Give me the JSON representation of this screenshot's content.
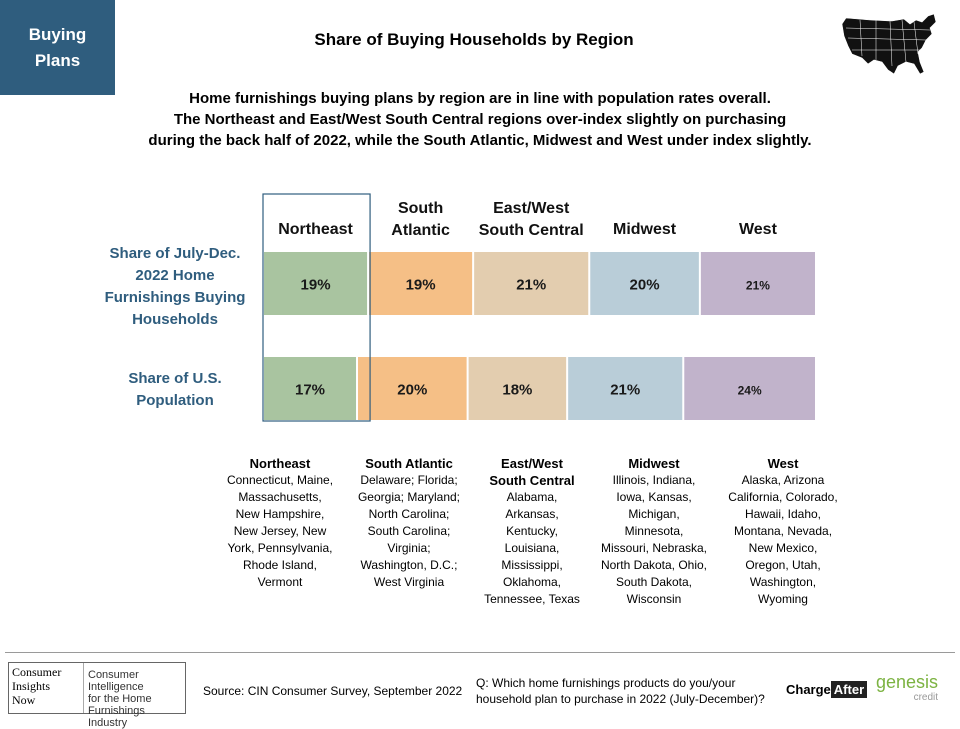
{
  "badge": {
    "line1": "Buying",
    "line2": "Plans"
  },
  "title": "Share of Buying Households by Region",
  "subtitle": {
    "line1": "Home furnishings buying plans by region are in line with population rates overall.",
    "line2": "The Northeast and East/West South Central regions over-index slightly on purchasing",
    "line3": "during the back half of 2022, while the South Atlantic, Midwest and West under index slightly."
  },
  "row_labels": {
    "buying": [
      "Share of July-Dec.",
      "2022 Home",
      "Furnishings Buying",
      "Households"
    ],
    "population": [
      "Share of U.S.",
      "Population"
    ]
  },
  "chart_data": {
    "type": "bar",
    "orientation": "horizontal-stacked",
    "categories": [
      "Northeast",
      "South Atlantic",
      "East/West South Central",
      "Midwest",
      "West"
    ],
    "category_labels": [
      [
        "Northeast"
      ],
      [
        "South",
        "Atlantic"
      ],
      [
        "East/West",
        "South Central"
      ],
      [
        "Midwest"
      ],
      [
        "West"
      ]
    ],
    "series": [
      {
        "name": "Share of July-Dec. 2022 Home Furnishings Buying Households",
        "values": [
          19,
          19,
          21,
          20,
          21
        ],
        "labels": [
          "19%",
          "19%",
          "21%",
          "20%",
          "21%"
        ]
      },
      {
        "name": "Share of U.S. Population",
        "values": [
          17,
          20,
          18,
          21,
          24
        ],
        "labels": [
          "17%",
          "20%",
          "18%",
          "21%",
          "24%"
        ]
      }
    ],
    "colors": [
      "#a9c4a0",
      "#f5bf86",
      "#e3cdaf",
      "#b9cdd8",
      "#c1b3cb"
    ],
    "highlight": "Northeast",
    "highlight_color": "#2f5d7e",
    "legend": "none",
    "grid": false
  },
  "regions": [
    {
      "name": "Northeast",
      "states": [
        "Connecticut, Maine,",
        "Massachusetts,",
        "New Hampshire,",
        "New Jersey, New",
        "York, Pennsylvania,",
        "Rhode Island,",
        "Vermont"
      ]
    },
    {
      "name": "South Atlantic",
      "states": [
        "Delaware; Florida;",
        "Georgia; Maryland;",
        "North Carolina;",
        "South Carolina;",
        "Virginia;",
        "Washington, D.C.;",
        "West Virginia"
      ]
    },
    {
      "name": "East/West South Central",
      "states": [
        "Alabama,",
        "Arkansas,",
        "Kentucky,",
        "Louisiana,",
        "Mississippi,",
        "Oklahoma,",
        "Tennessee, Texas"
      ]
    },
    {
      "name": "Midwest",
      "states": [
        "Illinois, Indiana,",
        "Iowa, Kansas,",
        "Michigan,",
        "Minnesota,",
        "Missouri, Nebraska,",
        "North Dakota, Ohio,",
        "South Dakota,",
        "Wisconsin"
      ]
    },
    {
      "name": "West",
      "states": [
        "Alaska, Arizona",
        "California, Colorado,",
        "Hawaii, Idaho,",
        "Montana, Nevada,",
        "New Mexico,",
        "Oregon, Utah,",
        "Washington,",
        "Wyoming"
      ]
    }
  ],
  "footer": {
    "cin_logo": [
      "Consumer",
      "Insights",
      "Now"
    ],
    "cin_tagline": [
      "Consumer Intelligence",
      "for the Home",
      "Furnishings Industry"
    ],
    "source": "Source: CIN Consumer Survey, September 2022",
    "question": [
      "Q: Which home furnishings products do you/your",
      "household plan to purchase in 2022 (July-December)?"
    ],
    "chargeafter": {
      "part1": "Charge",
      "part2": "After"
    },
    "genesis": {
      "name": "genesis",
      "sub": "credit"
    }
  },
  "icons": {
    "map": "us-map-icon"
  }
}
